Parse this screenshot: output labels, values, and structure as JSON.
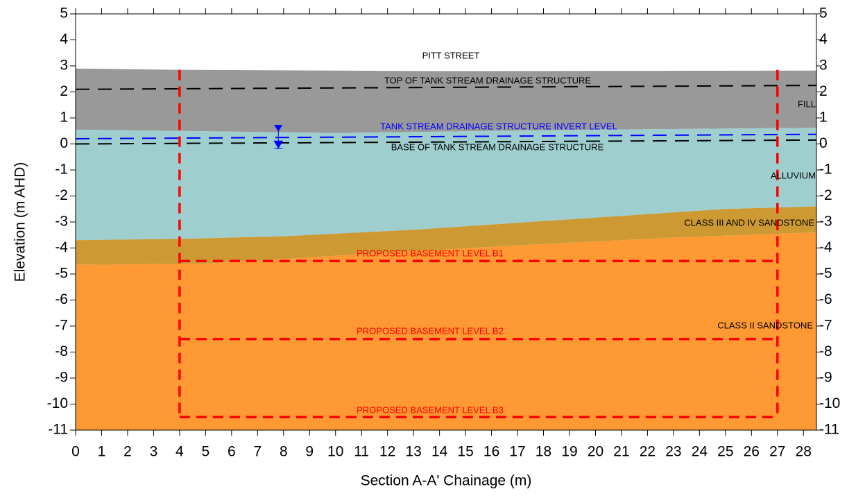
{
  "chart_data": {
    "type": "area",
    "xlabel": "Section A-A' Chainage (m)",
    "ylabel": "Elevation (m AHD)",
    "xlim": [
      0,
      28.5
    ],
    "ylim": [
      -11,
      5
    ],
    "y2lim": [
      -11,
      5
    ],
    "xticks": [
      0,
      1,
      2,
      3,
      4,
      5,
      6,
      7,
      8,
      9,
      10,
      11,
      12,
      13,
      14,
      15,
      16,
      17,
      18,
      19,
      20,
      21,
      22,
      23,
      24,
      25,
      26,
      27,
      28
    ],
    "yticks": [
      -11,
      -10,
      -9,
      -8,
      -7,
      -6,
      -5,
      -4,
      -3,
      -2,
      -1,
      0,
      1,
      2,
      3,
      4,
      5
    ],
    "y2ticks": [
      -11,
      -10,
      -9,
      -8,
      -7,
      -6,
      -5,
      -4,
      -3,
      -2,
      -1,
      0,
      1,
      2,
      3,
      4,
      5
    ],
    "annotations": [
      "PITT STREET"
    ],
    "series": [
      {
        "name": "FILL",
        "color": "#999999",
        "x": [
          0,
          4,
          14,
          28.5
        ],
        "values": [
          2.9,
          2.85,
          2.8,
          2.82
        ]
      },
      {
        "name": "ALLUVIUM",
        "color": "#9ecece",
        "x": [
          0,
          4,
          10,
          20,
          28.5
        ],
        "values": [
          0.55,
          0.5,
          0.42,
          0.55,
          0.62
        ]
      },
      {
        "name": "CLASS III AND IV SANDSTONE",
        "color": "#cc9933",
        "x": [
          0,
          4,
          8,
          13,
          19,
          25,
          28.5
        ],
        "values": [
          -3.7,
          -3.65,
          -3.55,
          -3.3,
          -2.9,
          -2.5,
          -2.4
        ]
      },
      {
        "name": "CLASS II SANDSTONE",
        "color": "#ff9933",
        "x": [
          0,
          5,
          10,
          17,
          23,
          28.5
        ],
        "values": [
          -4.65,
          -4.6,
          -4.3,
          -3.9,
          -3.6,
          -3.4
        ]
      }
    ],
    "lines": [
      {
        "name": "TOP OF TANK STREAM DRAINAGE STRUCTURE",
        "color": "#000000",
        "x": [
          0,
          28.5
        ],
        "values": [
          2.1,
          2.25
        ]
      },
      {
        "name": "TANK STREAM DRAINAGE STRUCTURE INVERT LEVEL",
        "color": "#0000ff",
        "x": [
          0,
          28.5
        ],
        "values": [
          0.2,
          0.37
        ]
      },
      {
        "name": "BASE OF TANK STREAM DRAINAGE STRUCTURE",
        "color": "#000000",
        "x": [
          0,
          28.5
        ],
        "values": [
          0,
          0.15
        ]
      },
      {
        "name": "PROPOSED BASEMENT LEVEL B1",
        "color": "#ff0000",
        "x": [
          4,
          27
        ],
        "values": [
          -4.5,
          -4.5
        ]
      },
      {
        "name": "PROPOSED BASEMENT LEVEL B2",
        "color": "#ff0000",
        "x": [
          4,
          27
        ],
        "values": [
          -7.5,
          -7.5
        ]
      },
      {
        "name": "PROPOSED BASEMENT LEVEL B3",
        "color": "#ff0000",
        "x": [
          4,
          27
        ],
        "values": [
          -10.5,
          -10.5
        ]
      },
      {
        "color": "#ff0000",
        "x": [
          4,
          4
        ],
        "values": [
          2.85,
          -10.5
        ]
      },
      {
        "color": "#ff0000",
        "x": [
          27,
          27
        ],
        "values": [
          2.85,
          -10.5
        ]
      }
    ],
    "water_marker": {
      "x": 7.8,
      "values": [
        0.6,
        -0.1
      ],
      "color": "#0000ff"
    }
  }
}
